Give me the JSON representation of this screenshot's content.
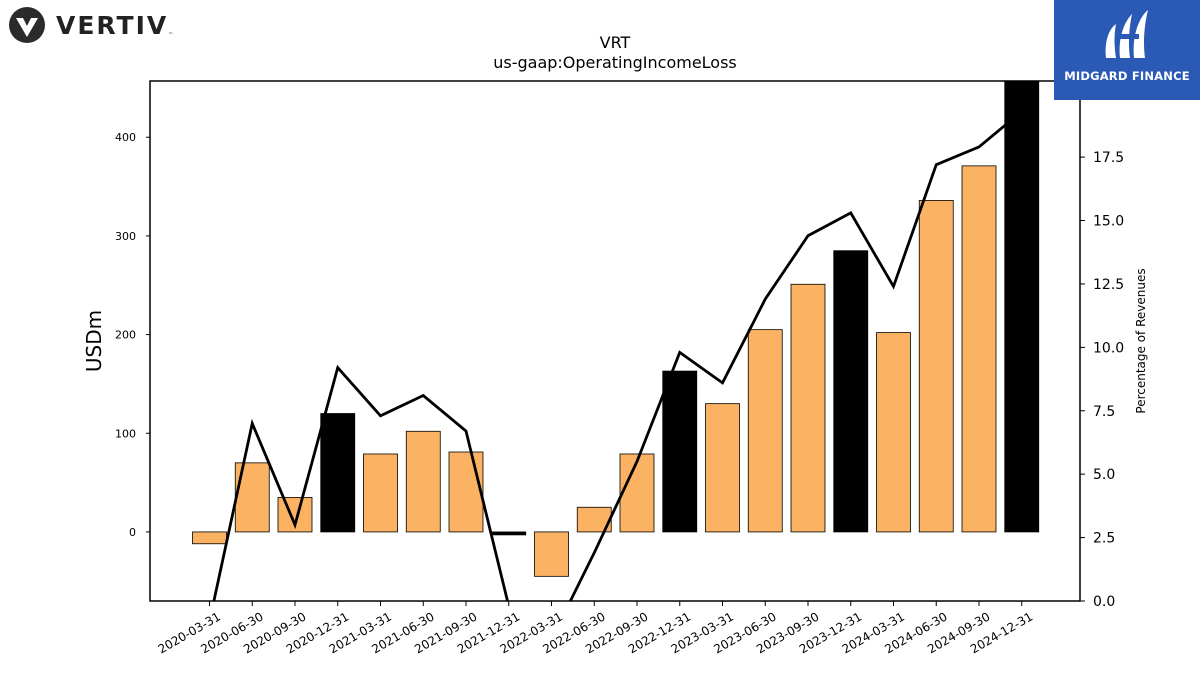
{
  "logos": {
    "left_brand": "VERTIV",
    "left_brand_tm": "™",
    "right_brand": "MIDGARD FINANCE"
  },
  "chart_data": {
    "type": "bar",
    "title": "VRT",
    "subtitle": "us-gaap:OperatingIncomeLoss",
    "ylabel": "USDm",
    "y2label": "Percentage of Revenues",
    "ylim": [
      -70,
      457
    ],
    "y2lim": [
      0.0,
      20.5
    ],
    "yticks": [
      "0",
      "100",
      "200",
      "300",
      "400"
    ],
    "y2ticks": [
      "0.0",
      "2.5",
      "5.0",
      "7.5",
      "10.0",
      "12.5",
      "15.0",
      "17.5",
      "20.0"
    ],
    "categories": [
      "2020-03-31",
      "2020-06-30",
      "2020-09-30",
      "2020-12-31",
      "2021-03-31",
      "2021-06-30",
      "2021-09-30",
      "2021-12-31",
      "2022-03-31",
      "2022-06-30",
      "2022-09-30",
      "2022-12-31",
      "2023-03-31",
      "2023-06-30",
      "2023-09-30",
      "2023-12-31",
      "2024-03-31",
      "2024-06-30",
      "2024-09-30",
      "2024-12-31"
    ],
    "series": [
      {
        "kind": "bar",
        "values": [
          -12,
          70,
          35,
          120,
          79,
          102,
          81,
          -3,
          -45,
          25,
          79,
          163,
          130,
          205,
          251,
          285,
          202,
          336,
          371,
          470
        ],
        "highlight_quarter_end": "12-31",
        "color": "#fbb263",
        "highlight_color": "#000000"
      },
      {
        "kind": "line",
        "axis": "y2",
        "values": [
          -0.8,
          7.0,
          3.0,
          9.2,
          7.3,
          8.1,
          6.7,
          -0.2,
          -1.5,
          1.9,
          5.5,
          9.8,
          8.6,
          11.9,
          14.4,
          15.3,
          12.4,
          17.2,
          17.9,
          19.3
        ],
        "color": "#000000"
      }
    ]
  }
}
